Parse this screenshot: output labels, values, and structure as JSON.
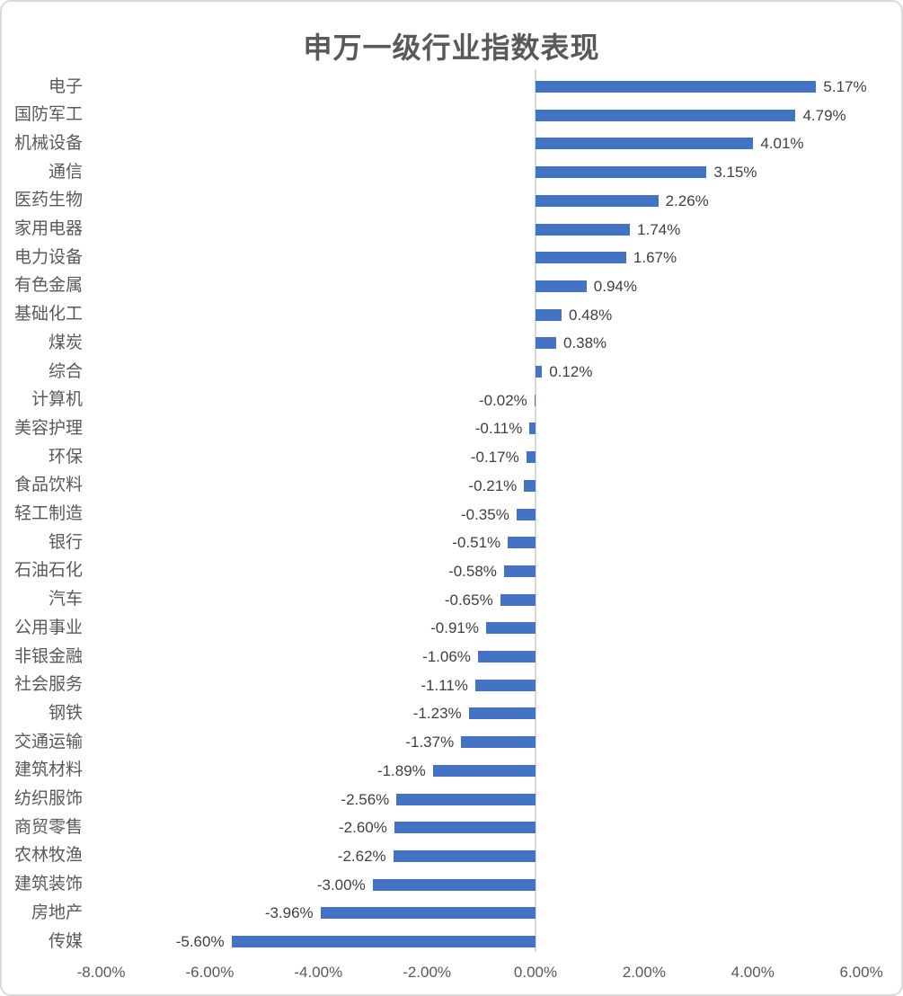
{
  "chart_data": {
    "type": "bar",
    "orientation": "horizontal",
    "title": "申万一级行业指数表现",
    "categories": [
      "电子",
      "国防军工",
      "机械设备",
      "通信",
      "医药生物",
      "家用电器",
      "电力设备",
      "有色金属",
      "基础化工",
      "煤炭",
      "综合",
      "计算机",
      "美容护理",
      "环保",
      "食品饮料",
      "轻工制造",
      "银行",
      "石油石化",
      "汽车",
      "公用事业",
      "非银金融",
      "社会服务",
      "钢铁",
      "交通运输",
      "建筑材料",
      "纺织服饰",
      "商贸零售",
      "农林牧渔",
      "建筑装饰",
      "房地产",
      "传媒"
    ],
    "values": [
      5.17,
      4.79,
      4.01,
      3.15,
      2.26,
      1.74,
      1.67,
      0.94,
      0.48,
      0.38,
      0.12,
      -0.02,
      -0.11,
      -0.17,
      -0.21,
      -0.35,
      -0.51,
      -0.58,
      -0.65,
      -0.91,
      -1.06,
      -1.11,
      -1.23,
      -1.37,
      -1.89,
      -2.56,
      -2.6,
      -2.62,
      -3.0,
      -3.96,
      -5.6
    ],
    "value_labels": [
      "5.17%",
      "4.79%",
      "4.01%",
      "3.15%",
      "2.26%",
      "1.74%",
      "1.67%",
      "0.94%",
      "0.48%",
      "0.38%",
      "0.12%",
      "-0.02%",
      "-0.11%",
      "-0.17%",
      "-0.21%",
      "-0.35%",
      "-0.51%",
      "-0.58%",
      "-0.65%",
      "-0.91%",
      "-1.06%",
      "-1.11%",
      "-1.23%",
      "-1.37%",
      "-1.89%",
      "-2.56%",
      "-2.60%",
      "-2.62%",
      "-3.00%",
      "-3.96%",
      "-5.60%"
    ],
    "x_ticks": [
      "-8.00%",
      "-6.00%",
      "-4.00%",
      "-2.00%",
      "0.00%",
      "2.00%",
      "4.00%",
      "6.00%"
    ],
    "x_tick_values": [
      -8,
      -6,
      -4,
      -2,
      0,
      2,
      4,
      6
    ],
    "xlim": [
      -8,
      6
    ],
    "grid": false,
    "legend": false,
    "bar_color": "#4472C4",
    "axis_line_color": "#D9D9D9",
    "label_color": "#595959",
    "value_label_color": "#404040"
  }
}
